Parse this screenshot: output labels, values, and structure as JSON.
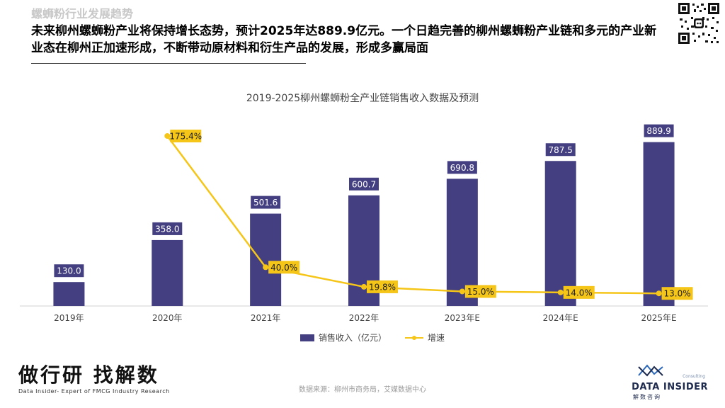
{
  "header": {
    "section_label": "螺蛳粉行业发展趋势",
    "headline": "未来柳州螺蛳粉产业将保持增长态势，预计2025年达889.9亿元。一个日趋完善的柳州螺蛳粉产业链和多元的产业新业态在柳州正加速形成，不断带动原材料和衍生产品的发展，形成多赢局面"
  },
  "chart_data": {
    "type": "bar",
    "title": "2019-2025柳州螺蛳粉全产业链销售收入数据及预测",
    "categories": [
      "2019年",
      "2020年",
      "2021年",
      "2022年",
      "2023年E",
      "2024年E",
      "2025年E"
    ],
    "series": [
      {
        "name": "销售收入（亿元）",
        "type": "bar",
        "axis": "left",
        "values": [
          130.0,
          358.0,
          501.6,
          600.7,
          690.8,
          787.5,
          889.9
        ],
        "labels": [
          "130.0",
          "358.0",
          "501.6",
          "600.7",
          "690.8",
          "787.5",
          "889.9"
        ],
        "color": "#433f80"
      },
      {
        "name": "增速",
        "type": "line",
        "axis": "right",
        "values": [
          null,
          175.4,
          40.0,
          19.8,
          15.0,
          14.0,
          13.0
        ],
        "labels": [
          "",
          "175.4%",
          "40.0%",
          "19.8%",
          "15.0%",
          "14.0%",
          "13.0%"
        ],
        "color": "#f5c518"
      }
    ],
    "ylim": [
      0,
      1000
    ],
    "y2lim": [
      0,
      190
    ],
    "grid": false,
    "legend_position": "bottom"
  },
  "footer": {
    "brand_left_title": "做行研 找解数",
    "brand_left_subtitle": "Data Insider- Expert of FMCG Industry Research",
    "source": "数据来源：柳州市商务局，艾媒数据中心",
    "brand_right_consulting": "Consulting",
    "brand_right_name": "DATA INSIDER",
    "brand_right_cn": "解数咨询"
  }
}
